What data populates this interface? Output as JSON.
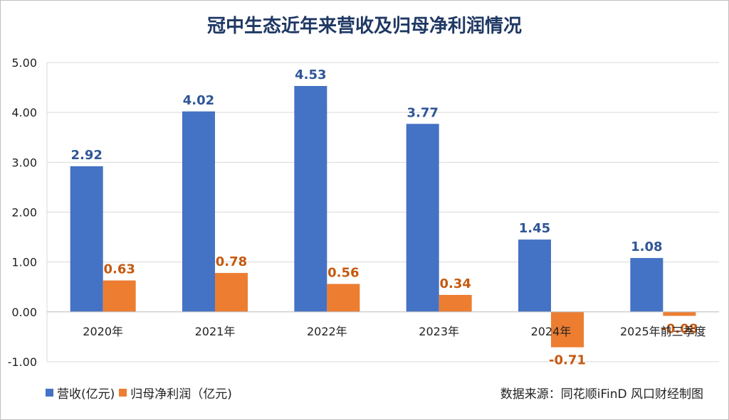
{
  "chart_data": {
    "type": "bar",
    "title": "冠中生态近年来营收及归母净利润情况",
    "categories": [
      "2020年",
      "2021年",
      "2022年",
      "2023年",
      "2024年",
      "2025年前三季度"
    ],
    "series": [
      {
        "name": "营收(亿元)",
        "color": "#4472c4",
        "label_color": "#2f5597",
        "values": [
          2.92,
          4.02,
          4.53,
          3.77,
          1.45,
          1.08
        ],
        "labels": [
          "2.92",
          "4.02",
          "4.53",
          "3.77",
          "1.45",
          "1.08"
        ]
      },
      {
        "name": "归母净利润（亿元)",
        "color": "#ed7d31",
        "label_color": "#c55a11",
        "values": [
          0.63,
          0.78,
          0.56,
          0.34,
          -0.71,
          -0.08
        ],
        "labels": [
          "0.63",
          "0.78",
          "0.56",
          "0.34",
          "-0.71",
          "-0.08"
        ]
      }
    ],
    "ylim": [
      -1.0,
      5.0
    ],
    "yticks": [
      -1.0,
      0.0,
      1.0,
      2.0,
      3.0,
      4.0,
      5.0
    ],
    "ytick_labels": [
      "-1.00",
      "0.00",
      "1.00",
      "2.00",
      "3.00",
      "4.00",
      "5.00"
    ],
    "xlabel": "",
    "ylabel": "",
    "grid": true,
    "legend_position": "bottom-left"
  },
  "source": "数据来源：同花顺iFinD 风口财经制图"
}
